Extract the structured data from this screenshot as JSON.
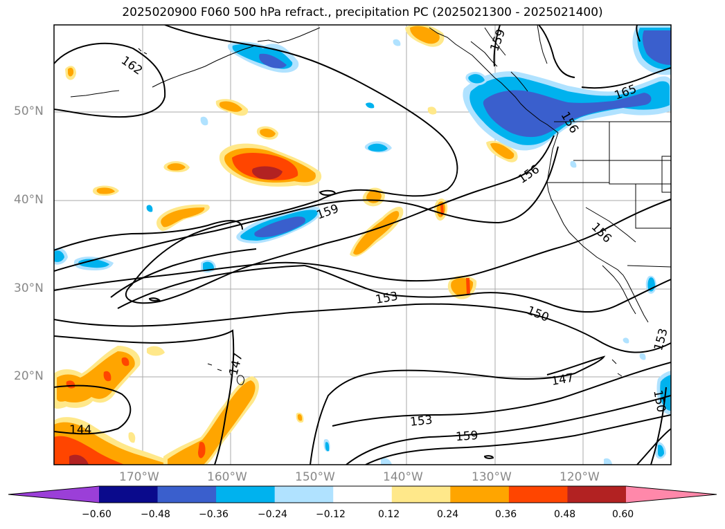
{
  "title": "2025020900 F060 500 hPa refract., precipitation PC (2025021300 - 2025021400)",
  "lat_labels": [
    "50°N",
    "40°N",
    "30°N",
    "20°N"
  ],
  "lon_labels": [
    "170°W",
    "160°W",
    "150°W",
    "140°W",
    "130°W",
    "120°W"
  ],
  "contour_labels": [
    "162",
    "159",
    "165",
    "156",
    "159",
    "156",
    "153",
    "150",
    "147",
    "147",
    "144",
    "153",
    "159",
    "153",
    "150",
    "156"
  ],
  "colorbar": {
    "ticks": [
      "−0.60",
      "−0.48",
      "−0.36",
      "−0.24",
      "−0.12",
      "0.12",
      "0.24",
      "0.36",
      "0.48",
      "0.60"
    ],
    "colors": [
      "#9b3fd8",
      "#0a0a8c",
      "#3a5fcd",
      "#00b2ee",
      "#b0e2ff",
      "#ffffff",
      "#ffe88a",
      "#ffa500",
      "#ff4500",
      "#b22222",
      "#ff88aa"
    ]
  },
  "palette": {
    "pale_yellow": "#ffe88a",
    "orange": "#ffa500",
    "red_orange": "#ff4500",
    "light_blue": "#b0e2ff",
    "sky_blue": "#00b2ee",
    "royal_blue": "#3a5fcd",
    "dark_red": "#b22222"
  }
}
